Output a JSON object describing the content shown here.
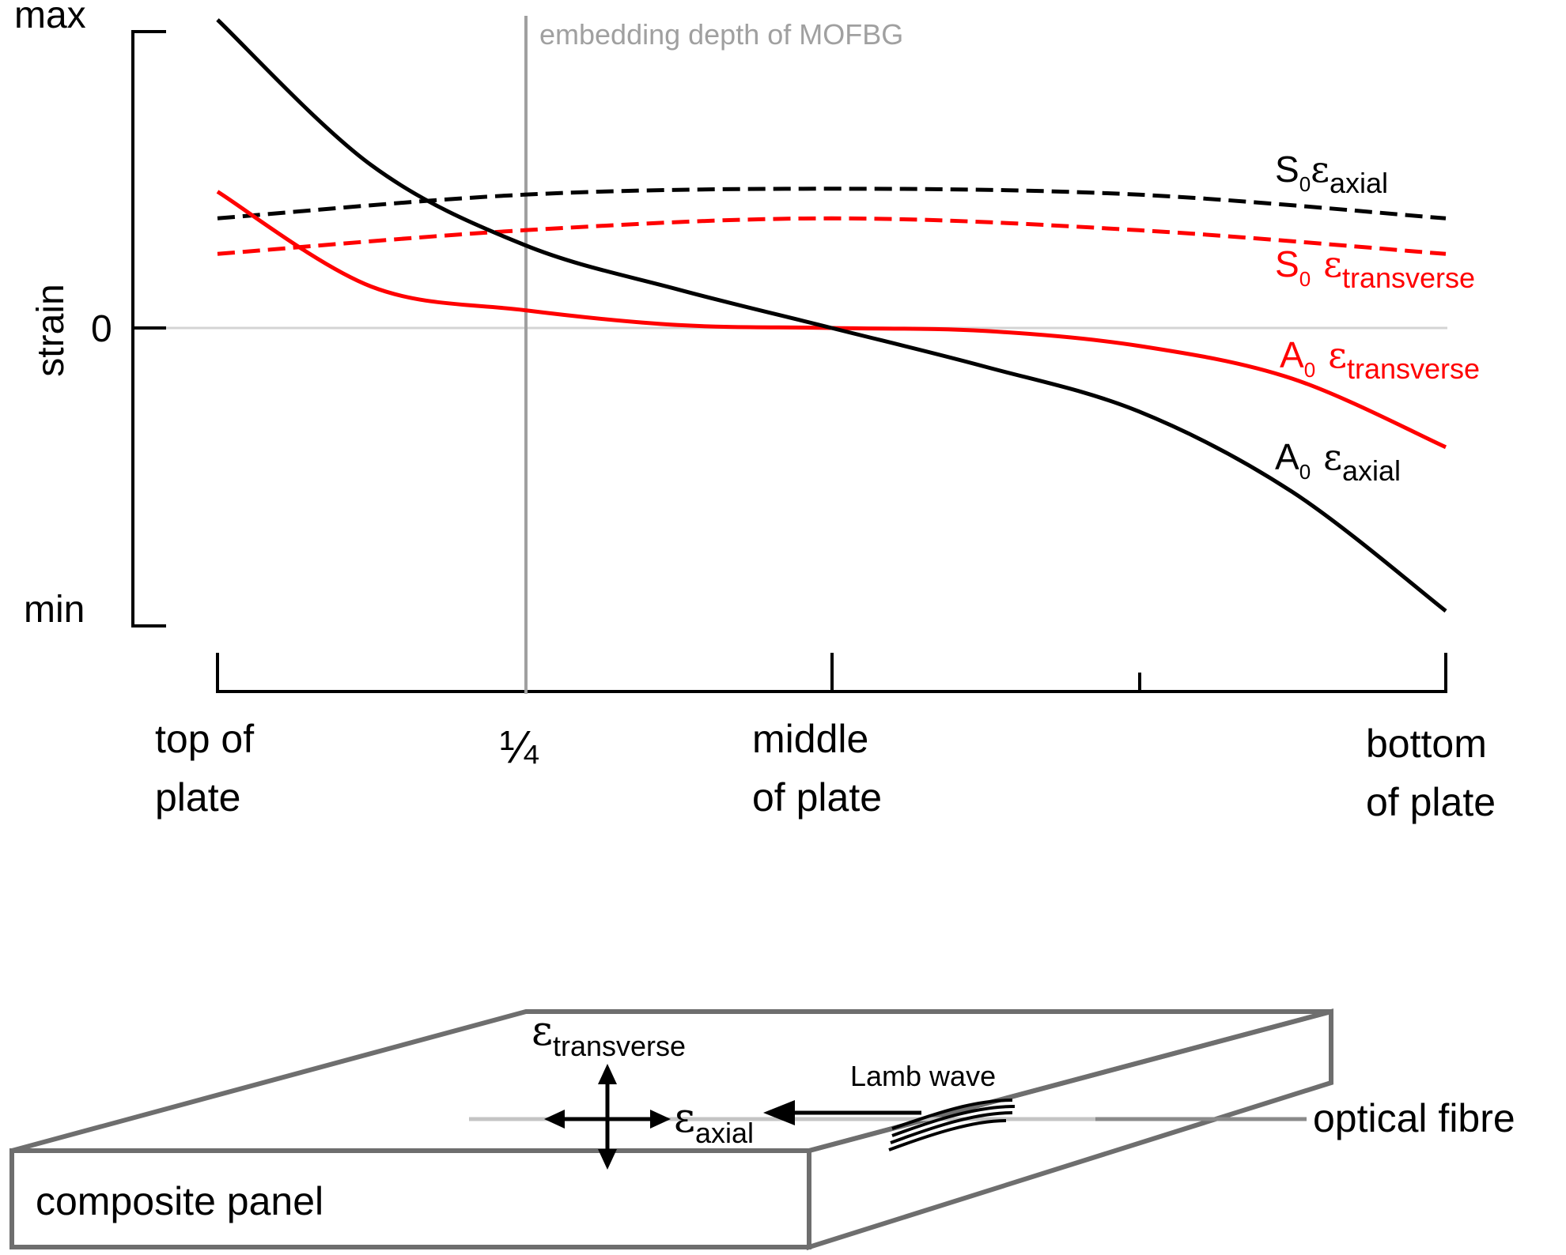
{
  "chart_data": {
    "type": "line",
    "ylabel": "strain",
    "y_ticks": [
      "max",
      "0",
      "min"
    ],
    "x_ticks": [
      "top of plate",
      "1/4",
      "middle of plate",
      "",
      "bottom of plate"
    ],
    "annotation": "embedding depth of MOFBG",
    "series": [
      {
        "name": "S0 ε axial",
        "color": "#000000",
        "dash": true,
        "x": [
          0,
          0.25,
          0.5,
          0.75,
          1
        ],
        "y": [
          0.37,
          0.45,
          0.47,
          0.45,
          0.37
        ]
      },
      {
        "name": "S0 ε transverse",
        "color": "#ff0000",
        "dash": true,
        "x": [
          0,
          0.25,
          0.5,
          0.75,
          1
        ],
        "y": [
          0.25,
          0.33,
          0.37,
          0.33,
          0.25
        ]
      },
      {
        "name": "A0 ε transverse",
        "color": "#ff0000",
        "dash": false,
        "x": [
          0,
          0.125,
          0.25,
          0.375,
          0.5,
          0.625,
          0.75,
          0.875,
          1
        ],
        "y": [
          0.46,
          0.14,
          0.06,
          0.01,
          0,
          -0.01,
          -0.06,
          -0.17,
          -0.4
        ]
      },
      {
        "name": "A0 ε axial",
        "color": "#000000",
        "dash": false,
        "x": [
          0,
          0.125,
          0.25,
          0.375,
          0.5,
          0.625,
          0.75,
          0.875,
          1
        ],
        "y": [
          1.04,
          0.55,
          0.28,
          0.13,
          0,
          -0.13,
          -0.28,
          -0.55,
          -0.95
        ]
      }
    ]
  },
  "labels": {
    "ymax": "max",
    "yzero": "0",
    "ymin": "min",
    "ylabel": "strain",
    "annotation": "embedding depth of MOFBG",
    "x_top_1": "top of",
    "x_top_2": "plate",
    "x_quarter": "¼",
    "x_mid_1": "middle",
    "x_mid_2": "of plate",
    "x_bot_1": "bottom",
    "x_bot_2": "of plate",
    "s0_axial": {
      "mode": "S",
      "sub_mode": "0",
      "eps": "ε",
      "sub": "axial"
    },
    "s0_trans": {
      "mode": "S",
      "sub_mode": "0",
      "eps": "ε",
      "sub": "transverse"
    },
    "a0_trans": {
      "mode": "A",
      "sub_mode": "0",
      "eps": "ε",
      "sub": "transverse"
    },
    "a0_axial": {
      "mode": "A",
      "sub_mode": "0",
      "eps": "ε",
      "sub": "axial"
    }
  },
  "panel": {
    "label": "composite panel",
    "fibre_label": "optical fibre",
    "wave_label": "Lamb wave",
    "eps": "ε",
    "transverse_sub": "transverse",
    "axial_sub": "axial"
  }
}
